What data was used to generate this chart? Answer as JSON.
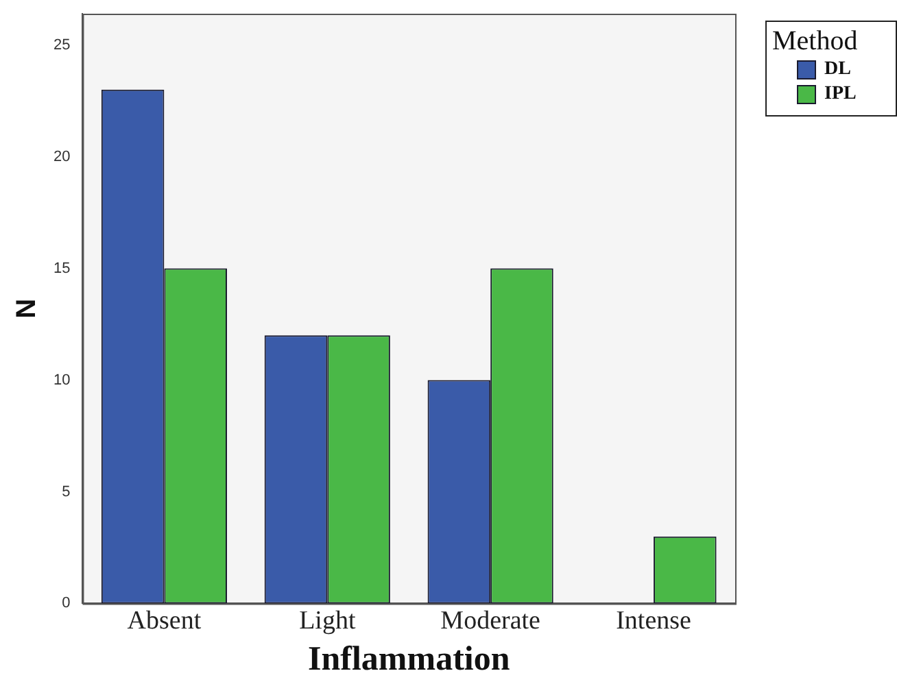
{
  "chart_data": {
    "type": "bar",
    "xlabel": "Inflammation",
    "ylabel": "N",
    "legend_title": "Method",
    "legend": "top right",
    "categories": [
      "Absent",
      "Light",
      "Moderate",
      "Intense"
    ],
    "series": [
      {
        "name": "DL",
        "color": "#3a5ba9",
        "values": [
          23,
          12,
          10,
          0
        ]
      },
      {
        "name": "IPL",
        "color": "#4ab847",
        "values": [
          15,
          12,
          15,
          3
        ]
      }
    ],
    "ylim": [
      0,
      26.4
    ],
    "yticks": [
      0,
      5,
      10,
      15,
      20,
      25
    ],
    "grid": false
  }
}
